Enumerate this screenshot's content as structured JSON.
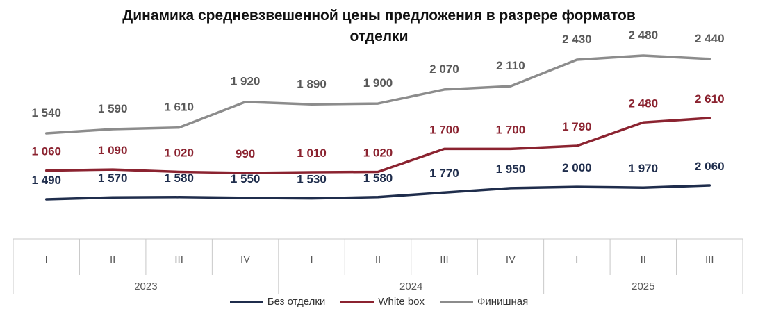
{
  "chart_data": {
    "type": "line",
    "title_lines": [
      "Динамика средневзвешенной цены предложения в разрере форматов",
      "отделки"
    ],
    "xlabel": "",
    "ylabel": "",
    "categories": [
      "I",
      "II",
      "III",
      "IV",
      "I",
      "II",
      "III",
      "IV",
      "I",
      "II",
      "III"
    ],
    "years": [
      {
        "label": "2023",
        "quarters": 4
      },
      {
        "label": "2024",
        "quarters": 4
      },
      {
        "label": "2025",
        "quarters": 3
      }
    ],
    "series": [
      {
        "name": "Без отделки",
        "color": "#1f2d4c",
        "values": [
          1490,
          1570,
          1580,
          1550,
          1530,
          1580,
          1770,
          1950,
          2000,
          1970,
          2060
        ],
        "labels": [
          "1 490",
          "1 570",
          "1 580",
          "1 550",
          "1 530",
          "1 580",
          "1 770",
          "1 950",
          "2 000",
          "1 970",
          "2 060"
        ]
      },
      {
        "name": "White box",
        "color": "#8b2330",
        "values": [
          1060,
          1090,
          1020,
          990,
          1010,
          1020,
          1700,
          1700,
          1790,
          2480,
          2610
        ],
        "labels": [
          "1 060",
          "1 090",
          "1 020",
          "990",
          "1 010",
          "1 020",
          "1 700",
          "1 700",
          "1 790",
          "2 480",
          "2 610"
        ]
      },
      {
        "name": "Финишная",
        "color": "#8c8c8c",
        "values": [
          1540,
          1590,
          1610,
          1920,
          1890,
          1900,
          2070,
          2110,
          2430,
          2480,
          2440
        ],
        "labels": [
          "1 540",
          "1 590",
          "1 610",
          "1 920",
          "1 890",
          "1 900",
          "2 070",
          "2 110",
          "2 430",
          "2 480",
          "2 440"
        ]
      }
    ],
    "legend_position": "bottom",
    "grid": false
  }
}
